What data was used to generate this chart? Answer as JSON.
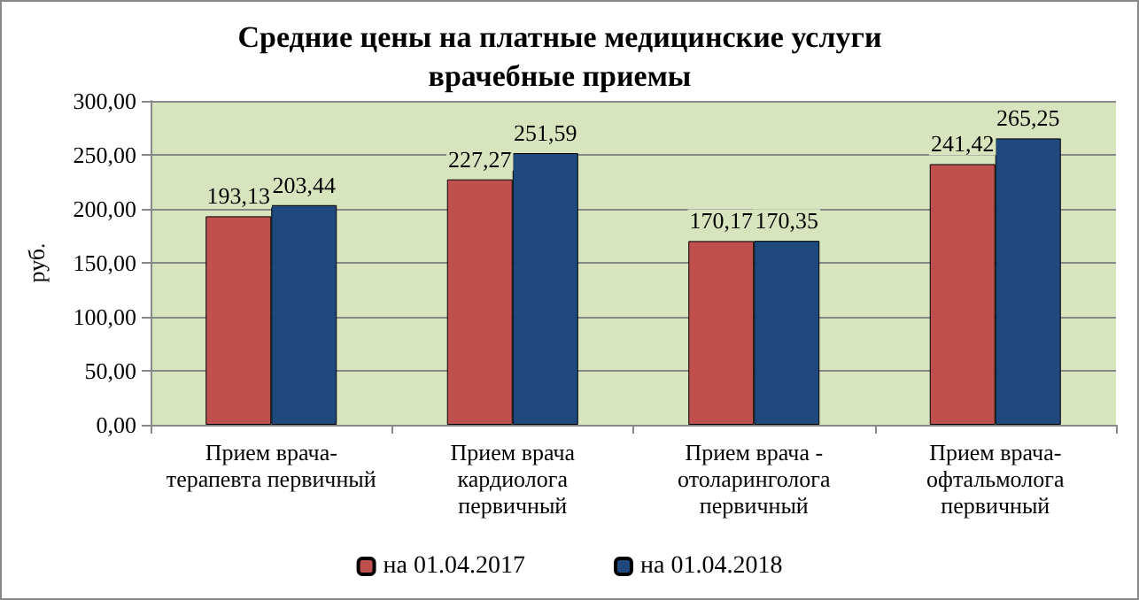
{
  "chart_data": {
    "type": "bar",
    "title": "Средние цены на платные медицинские услуги\nврачебные приемы",
    "ylabel": "руб.",
    "categories": [
      "Прием врача-\nтерапевта первичный",
      "Прием врача\nкардиолога\nпервичный",
      "Прием врача -\nотоларинголога\nпервичный",
      "Прием врача-\nофтальмолога\nпервичный"
    ],
    "series": [
      {
        "name": "на 01.04.2017",
        "color": "#c0504d",
        "values": [
          193.13,
          227.27,
          170.17,
          241.42
        ],
        "value_labels": [
          "193,13",
          "227,27",
          "170,17",
          "241,42"
        ]
      },
      {
        "name": "на 01.04.2018",
        "color": "#1f497d",
        "values": [
          203.44,
          251.59,
          170.35,
          265.25
        ],
        "value_labels": [
          "203,44",
          "251,59",
          "170,35",
          "265,25"
        ]
      }
    ],
    "ylim": [
      0,
      300
    ],
    "yticks": [
      {
        "value": 0,
        "label": "0,00"
      },
      {
        "value": 50,
        "label": "50,00"
      },
      {
        "value": 100,
        "label": "100,00"
      },
      {
        "value": 150,
        "label": "150,00"
      },
      {
        "value": 200,
        "label": "200,00"
      },
      {
        "value": 250,
        "label": "250,00"
      },
      {
        "value": 300,
        "label": "300,00"
      }
    ],
    "grid": "y",
    "legend": "bottom"
  }
}
